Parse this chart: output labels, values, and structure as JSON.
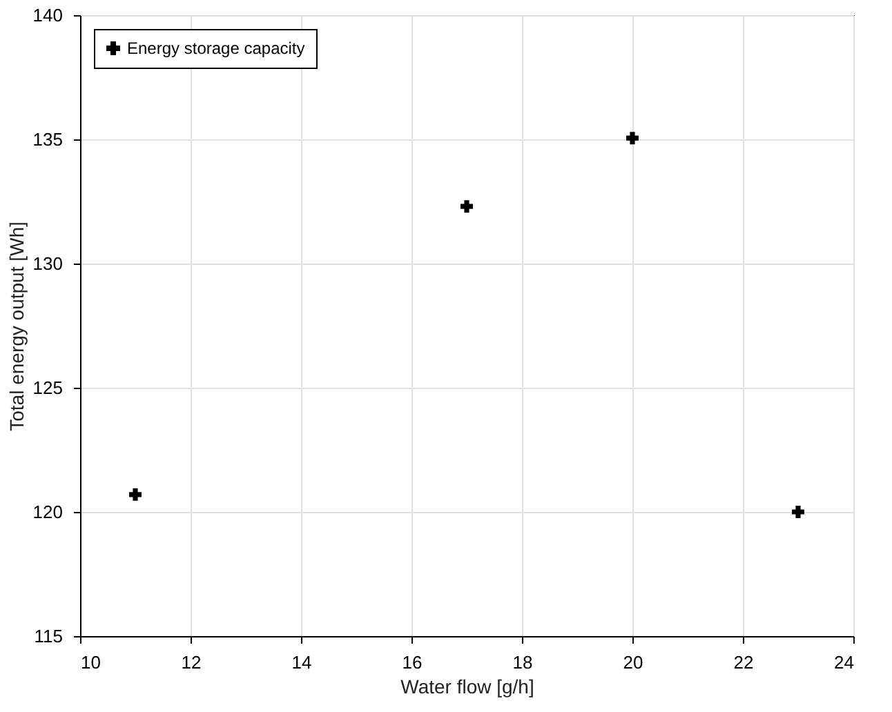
{
  "chart_data": {
    "type": "scatter",
    "xlabel": "Water flow [g/h]",
    "ylabel": "Total energy output [Wh]",
    "x": [
      11,
      17,
      20,
      23
    ],
    "series": [
      {
        "name": "Energy storage capacity",
        "color": "#000000",
        "values": [
          120.7,
          132.3,
          135.05,
          120.0
        ]
      }
    ],
    "xlim": [
      10,
      24
    ],
    "xticks": [
      10,
      12,
      14,
      16,
      18,
      20,
      22,
      24
    ],
    "ylim": [
      115,
      140
    ],
    "yticks": [
      115,
      120,
      125,
      130,
      135,
      140
    ],
    "grid": true,
    "legend": "top left",
    "marker": "cross"
  }
}
